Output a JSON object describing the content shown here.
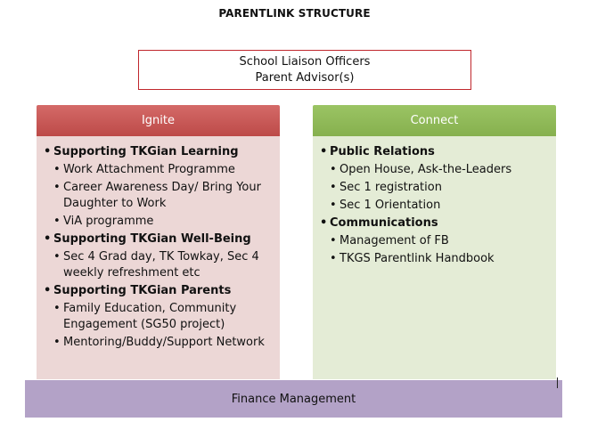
{
  "title": "PARENTLINK STRUCTURE",
  "top_box": {
    "line1": "School Liaison Officers",
    "line2": "Parent Advisor(s)"
  },
  "ignite": {
    "header": "Ignite",
    "color": "#c0504d",
    "sections": [
      {
        "title": "Supporting TKGian Learning",
        "items": [
          "Work Attachment Programme",
          "Career Awareness Day/ Bring Your Daughter to Work",
          "ViA programme"
        ]
      },
      {
        "title": "Supporting TKGian Well-Being",
        "items": [
          "Sec 4 Grad day, TK Towkay, Sec 4 weekly refreshment etc"
        ]
      },
      {
        "title": "Supporting TKGian Parents",
        "items": [
          "Family Education, Community Engagement (SG50 project)",
          "Mentoring/Buddy/Support  Network"
        ]
      }
    ]
  },
  "connect": {
    "header": "Connect",
    "color": "#9bbb59",
    "sections": [
      {
        "title": "Public Relations",
        "items": [
          "Open House, Ask-the-Leaders",
          "Sec 1 registration",
          "Sec 1 Orientation"
        ]
      },
      {
        "title": "Communications",
        "items": [
          "Management of FB",
          "TKGS Parentlink Handbook"
        ]
      }
    ]
  },
  "bottom_box": {
    "label": "Finance Management",
    "color": "#b3a2c7"
  }
}
